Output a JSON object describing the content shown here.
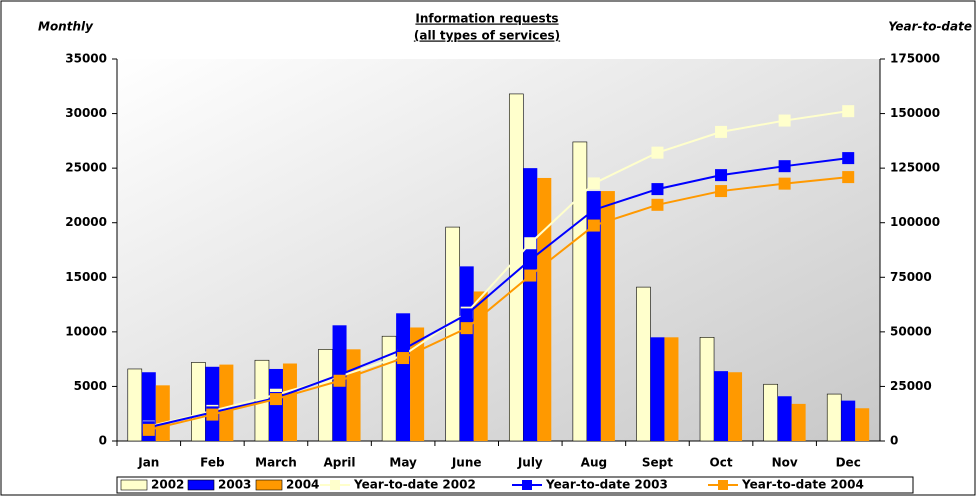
{
  "chart_data": {
    "type": "bar-line",
    "title": "Information requests",
    "subtitle": "(all types of services)",
    "y_label": "Monthly",
    "y2_label": "Year-to-date",
    "categories": [
      "Jan",
      "Feb",
      "March",
      "April",
      "May",
      "June",
      "July",
      "Aug",
      "Sept",
      "Oct",
      "Nov",
      "Dec"
    ],
    "ylim": [
      0,
      35000
    ],
    "yticks": [
      0,
      5000,
      10000,
      15000,
      20000,
      25000,
      30000,
      35000
    ],
    "y2lim": [
      0,
      175000
    ],
    "y2ticks": [
      0,
      25000,
      50000,
      75000,
      100000,
      125000,
      150000,
      175000
    ],
    "series": [
      {
        "name": "2002",
        "type": "bar",
        "color": "#ffffcc",
        "values": [
          6600,
          7200,
          7400,
          8400,
          9600,
          19600,
          31800,
          27400,
          14100,
          9500,
          5200,
          4300
        ]
      },
      {
        "name": "2003",
        "type": "bar",
        "color": "#0000ff",
        "values": [
          6300,
          6800,
          6600,
          10600,
          11700,
          16000,
          25000,
          22900,
          9500,
          6400,
          4100,
          3700
        ]
      },
      {
        "name": "2004",
        "type": "bar",
        "color": "#ff9900",
        "values": [
          5100,
          7000,
          7100,
          8400,
          10400,
          13700,
          24100,
          22900,
          9500,
          6300,
          3400,
          3000
        ]
      },
      {
        "name": "Year-to-date 2002",
        "type": "line",
        "axis": "y2",
        "color": "#ffffcc",
        "values": [
          6600,
          13800,
          21200,
          29600,
          39200,
          58800,
          90600,
          118000,
          132100,
          141600,
          146800,
          151100
        ]
      },
      {
        "name": "Year-to-date 2003",
        "type": "line",
        "axis": "y2",
        "color": "#0000ff",
        "values": [
          6300,
          13100,
          19700,
          30300,
          42000,
          58000,
          83000,
          105900,
          115400,
          121800,
          125900,
          129600
        ]
      },
      {
        "name": "Year-to-date 2004",
        "type": "line",
        "axis": "y2",
        "color": "#ff9900",
        "values": [
          5100,
          12100,
          19200,
          27600,
          38000,
          51700,
          75800,
          98700,
          108200,
          114500,
          117900,
          120900
        ]
      }
    ]
  }
}
